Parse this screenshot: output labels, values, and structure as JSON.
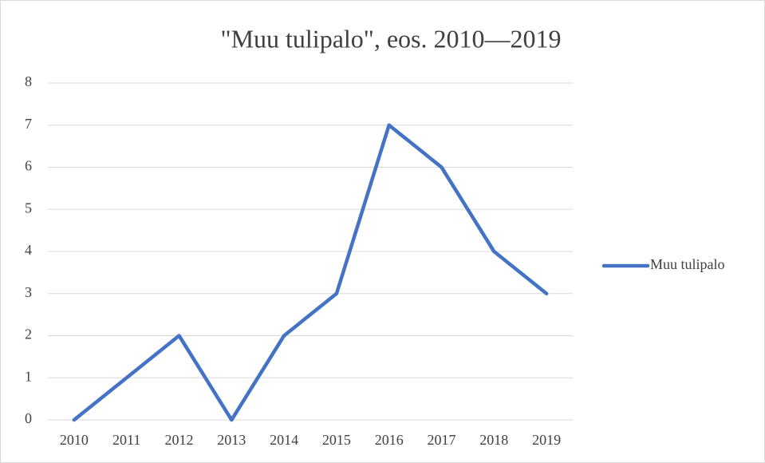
{
  "chart_data": {
    "type": "line",
    "title": "\"Muu tulipalo\", eos. 2010—2019",
    "categories": [
      "2010",
      "2011",
      "2012",
      "2013",
      "2014",
      "2015",
      "2016",
      "2017",
      "2018",
      "2019"
    ],
    "series": [
      {
        "name": "Muu tulipalo",
        "color": "#4472c4",
        "values": [
          0,
          1,
          2,
          0,
          2,
          3,
          7,
          6,
          4,
          3
        ]
      }
    ],
    "ylim": [
      0,
      8
    ],
    "yticks": [
      0,
      1,
      2,
      3,
      4,
      5,
      6,
      7,
      8
    ],
    "grid": true,
    "legend": "right"
  }
}
